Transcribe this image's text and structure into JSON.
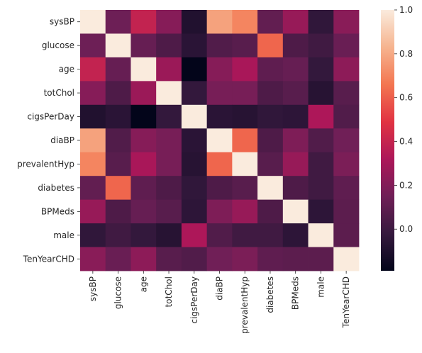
{
  "chart_data": {
    "type": "heatmap",
    "variables": [
      "sysBP",
      "glucose",
      "age",
      "totChol",
      "cigsPerDay",
      "diaBP",
      "prevalentHyp",
      "diabetes",
      "BPMeds",
      "male",
      "TenYearCHD"
    ],
    "matrix": [
      [
        1.0,
        0.14,
        0.39,
        0.21,
        -0.09,
        0.78,
        0.7,
        0.11,
        0.26,
        -0.04,
        0.22
      ],
      [
        0.14,
        1.0,
        0.12,
        0.05,
        -0.06,
        0.06,
        0.08,
        0.62,
        0.05,
        0.01,
        0.13
      ],
      [
        0.39,
        0.12,
        1.0,
        0.27,
        -0.19,
        0.21,
        0.31,
        0.1,
        0.12,
        -0.03,
        0.23
      ],
      [
        0.21,
        0.05,
        0.27,
        1.0,
        -0.03,
        0.17,
        0.17,
        0.05,
        0.08,
        -0.07,
        0.08
      ],
      [
        -0.09,
        -0.06,
        -0.19,
        -0.03,
        1.0,
        -0.06,
        -0.07,
        -0.04,
        -0.05,
        0.32,
        0.06
      ],
      [
        0.78,
        0.06,
        0.21,
        0.17,
        -0.06,
        1.0,
        0.62,
        0.05,
        0.19,
        0.06,
        0.15
      ],
      [
        0.7,
        0.08,
        0.31,
        0.17,
        -0.07,
        0.62,
        1.0,
        0.08,
        0.26,
        0.01,
        0.18
      ],
      [
        0.11,
        0.62,
        0.1,
        0.05,
        -0.04,
        0.05,
        0.08,
        1.0,
        0.05,
        0.01,
        0.1
      ],
      [
        0.26,
        0.05,
        0.12,
        0.08,
        -0.05,
        0.19,
        0.26,
        0.05,
        1.0,
        -0.05,
        0.09
      ],
      [
        -0.04,
        0.01,
        -0.03,
        -0.07,
        0.32,
        0.06,
        0.01,
        0.01,
        -0.05,
        1.0,
        0.09
      ],
      [
        0.22,
        0.13,
        0.23,
        0.08,
        0.06,
        0.15,
        0.18,
        0.1,
        0.09,
        0.09,
        1.0
      ]
    ],
    "colorbar": {
      "min": -0.19,
      "max": 1.0,
      "ticks": [
        0.0,
        0.2,
        0.4,
        0.6,
        0.8,
        1.0
      ],
      "tick_labels": [
        "0.0",
        "0.2",
        "0.4",
        "0.6",
        "0.8",
        "1.0"
      ]
    },
    "colormap": "rocket",
    "colormap_stops": [
      "#03051a",
      "#36193e",
      "#701f57",
      "#ad1759",
      "#e13342",
      "#f37651",
      "#f6b48f",
      "#faebdd"
    ],
    "title": "",
    "xlabel": "",
    "ylabel": ""
  }
}
